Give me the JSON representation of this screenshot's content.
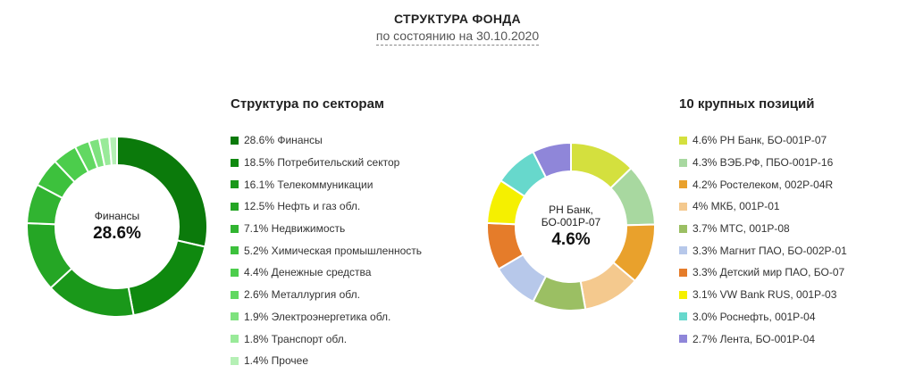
{
  "header": {
    "title": "СТРУКТУРА ФОНДА",
    "subtitle": "по состоянию на 30.10.2020"
  },
  "chart_data": [
    {
      "type": "pie",
      "title": "Структура по секторам",
      "center": {
        "label": "Финансы",
        "value": "28.6%"
      },
      "legend_placement": "right",
      "slices": [
        {
          "label": "28.6% Финансы",
          "value": 28.6,
          "color": "#0b7a0b"
        },
        {
          "label": "18.5% Потребительский сектор",
          "value": 18.5,
          "color": "#0f890f"
        },
        {
          "label": "16.1% Телекоммуникации",
          "value": 16.1,
          "color": "#1a981a"
        },
        {
          "label": "12.5% Нефть и газ обл.",
          "value": 12.5,
          "color": "#25a625"
        },
        {
          "label": "7.1% Недвижимость",
          "value": 7.1,
          "color": "#31b431"
        },
        {
          "label": "5.2% Химическая промышленность",
          "value": 5.2,
          "color": "#3dc13d"
        },
        {
          "label": "4.4% Денежные средства",
          "value": 4.4,
          "color": "#4ccd4c"
        },
        {
          "label": "2.6% Металлургия обл.",
          "value": 2.6,
          "color": "#62d862"
        },
        {
          "label": "1.9% Электроэнергетика обл.",
          "value": 1.9,
          "color": "#7ee27e"
        },
        {
          "label": "1.8% Транспорт обл.",
          "value": 1.8,
          "color": "#99ea99"
        },
        {
          "label": "1.4% Прочее",
          "value": 1.4,
          "color": "#b5f0b5"
        }
      ]
    },
    {
      "type": "pie",
      "title": "10 крупных позиций",
      "center": {
        "label": "РН Банк, БО-001Р-07",
        "value": "4.6%"
      },
      "legend_placement": "right",
      "slices": [
        {
          "label": "4.6% РН Банк, БО-001Р-07",
          "value": 4.6,
          "color": "#d4e03e"
        },
        {
          "label": "4.3% ВЭБ.РФ, ПБО-001Р-16",
          "value": 4.3,
          "color": "#a8d8a0"
        },
        {
          "label": "4.2% Ростелеком, 002Р-04R",
          "value": 4.2,
          "color": "#e9a12c"
        },
        {
          "label": "4% МКБ, 001Р-01",
          "value": 4.0,
          "color": "#f4c98e"
        },
        {
          "label": "3.7% МТС, 001Р-08",
          "value": 3.7,
          "color": "#9bbf63"
        },
        {
          "label": "3.3% Магнит ПАО, БО-002Р-01",
          "value": 3.3,
          "color": "#b7c8ea"
        },
        {
          "label": "3.3% Детский мир ПАО, БО-07",
          "value": 3.3,
          "color": "#e57c2a"
        },
        {
          "label": "3.1% VW Bank RUS, 001Р-03",
          "value": 3.1,
          "color": "#f5f000"
        },
        {
          "label": "3.0% Роснефть, 001Р-04",
          "value": 3.0,
          "color": "#67d8cc"
        },
        {
          "label": "2.7% Лента, БО-001Р-04",
          "value": 2.7,
          "color": "#8f86d9"
        }
      ]
    }
  ]
}
